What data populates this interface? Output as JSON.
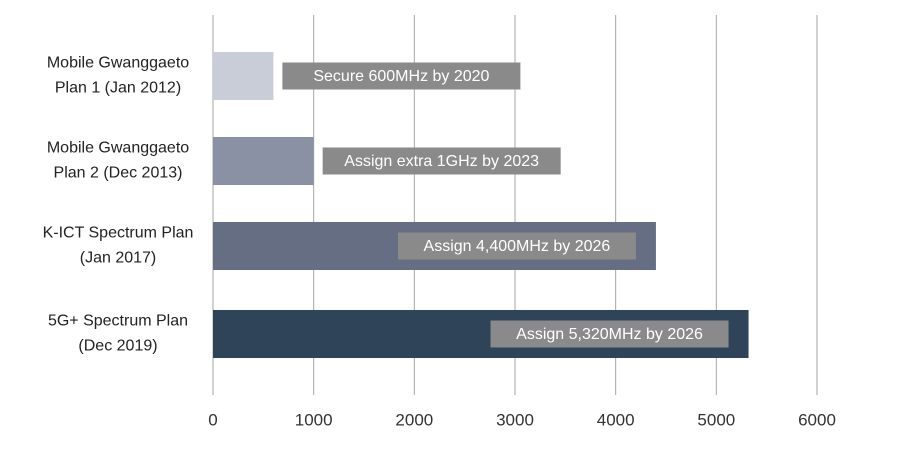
{
  "chart_data": {
    "type": "barh",
    "categories": [
      [
        "Mobile Gwanggaeto",
        "Plan 1 (Jan 2012)"
      ],
      [
        "Mobile Gwanggaeto",
        "Plan 2 (Dec 2013)"
      ],
      [
        "K-ICT Spectrum Plan",
        "(Jan 2017)"
      ],
      [
        "5G+ Spectrum Plan",
        "(Dec 2019)"
      ]
    ],
    "values": [
      600,
      1000,
      4400,
      5320
    ],
    "colors": [
      "#c9cdd8",
      "#8a91a4",
      "#656e83",
      "#2f4459"
    ],
    "annotations": [
      "Secure 600MHz by 2020",
      "Assign extra 1GHz by 2023",
      "Assign 4,400MHz by 2026",
      "Assign 5,320MHz by 2026"
    ],
    "annotation_color": "#8a8a8a",
    "xlim": [
      0,
      6000
    ],
    "xticks": [
      0,
      1000,
      2000,
      3000,
      4000,
      5000,
      6000
    ],
    "grid": true
  }
}
